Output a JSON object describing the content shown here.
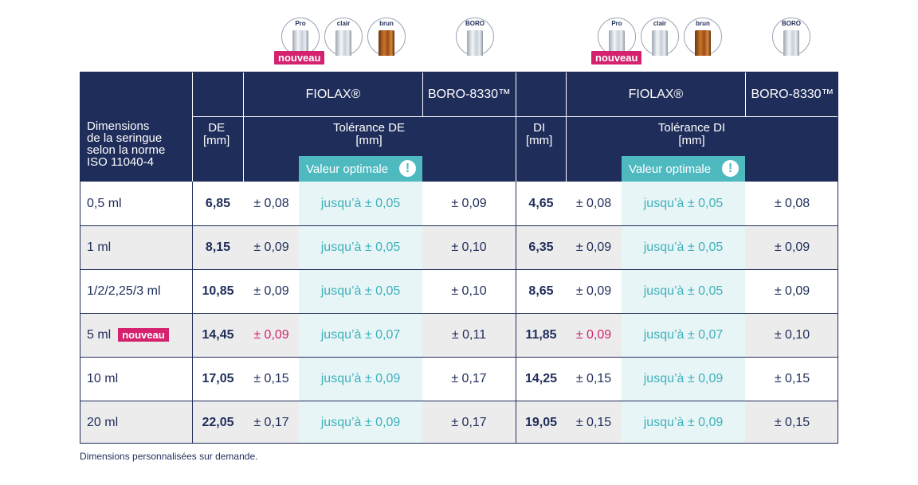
{
  "icons": {
    "pro": "Pro",
    "clair": "clair",
    "brun": "brun",
    "boro": "BORO",
    "nouveau": "nouveau"
  },
  "header": {
    "fiolax": "FIOLAX®",
    "boro": "BORO-8330™",
    "dimensions_line1": "Dimensions",
    "dimensions_line2": "de la seringue",
    "dimensions_line3": "selon la norme",
    "dimensions_line4": "ISO 11040-4",
    "de": "DE",
    "di": "DI",
    "mm": "[mm]",
    "tol_de": "Tolérance DE",
    "tol_di": "Tolérance DI",
    "valeur_optimale": "Valeur optimale",
    "excl": "!"
  },
  "rows": [
    {
      "dim": "0,5 ml",
      "de": "6,85",
      "de_tol": "± 0,08",
      "de_opt": "jusqu’à ± 0,05",
      "de_boro": "± 0,09",
      "di": "4,65",
      "di_tol": "± 0,08",
      "di_opt": "jusqu’à ± 0,05",
      "di_boro": "± 0,08"
    },
    {
      "dim": "1 ml",
      "de": "8,15",
      "de_tol": "± 0,09",
      "de_opt": "jusqu’à ± 0,05",
      "de_boro": "± 0,10",
      "di": "6,35",
      "di_tol": "± 0,09",
      "di_opt": "jusqu’à ± 0,05",
      "di_boro": "± 0,09"
    },
    {
      "dim": "1/2/2,25/3 ml",
      "de": "10,85",
      "de_tol": "± 0,09",
      "de_opt": "jusqu’à ± 0,05",
      "de_boro": "± 0,10",
      "di": "8,65",
      "di_tol": "± 0,09",
      "di_opt": "jusqu’à ± 0,05",
      "di_boro": "± 0,09"
    },
    {
      "dim": "5 ml",
      "badge": "nouveau",
      "de": "14,45",
      "de_tol": "± 0,09",
      "de_opt": "jusqu’à ± 0,07",
      "de_boro": "± 0,11",
      "di": "11,85",
      "di_tol": "± 0,09",
      "di_opt": "jusqu’à ± 0,07",
      "di_boro": "± 0,10"
    },
    {
      "dim": "10 ml",
      "de": "17,05",
      "de_tol": "± 0,15",
      "de_opt": "jusqu’à ± 0,09",
      "de_boro": "± 0,17",
      "di": "14,25",
      "di_tol": "± 0,15",
      "di_opt": "jusqu’à ± 0,09",
      "di_boro": "± 0,15"
    },
    {
      "dim": "20 ml",
      "de": "22,05",
      "de_tol": "± 0,17",
      "de_opt": "jusqu’à ± 0,09",
      "de_boro": "± 0,17",
      "di": "19,05",
      "di_tol": "± 0,15",
      "di_opt": "jusqu’à ± 0,09",
      "di_boro": "± 0,15"
    }
  ],
  "footnote": "Dimensions personnalisées sur demande.",
  "colors": {
    "navy": "#1f2d5a",
    "teal": "#4fb9c0",
    "pink": "#d4226f",
    "row_alt": "#ececec"
  }
}
